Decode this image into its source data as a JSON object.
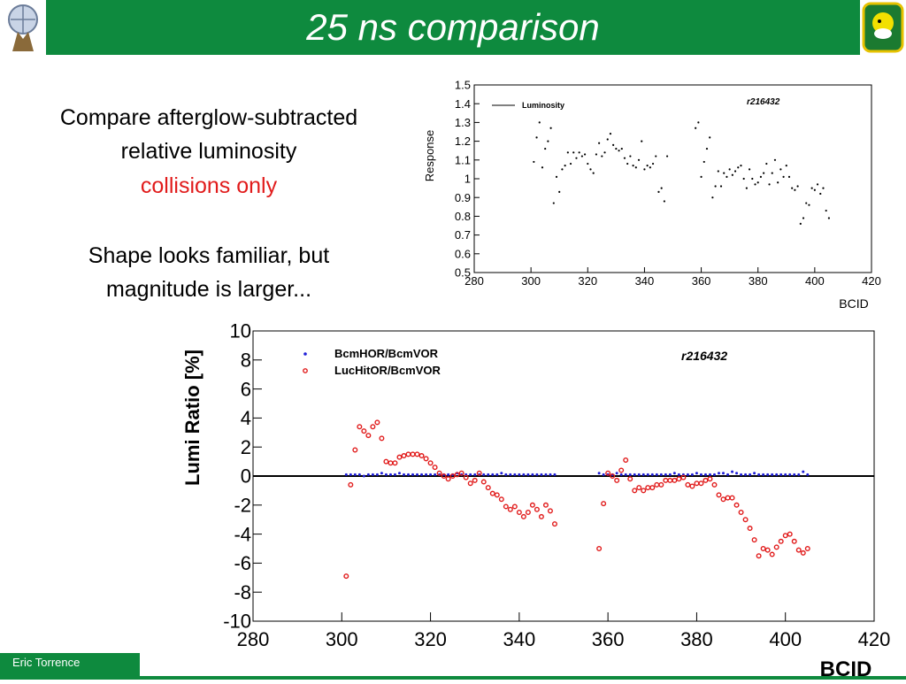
{
  "header": {
    "title": "25 ns comparison"
  },
  "body": {
    "line1": "Compare afterglow-subtracted",
    "line2": "relative luminosity",
    "line3": "collisions only",
    "line4": "Shape looks familiar, but",
    "line5": "magnitude is larger..."
  },
  "footer": {
    "author": "Eric Torrence"
  },
  "colors": {
    "green": "#0e8a3e",
    "red": "#e11b1b",
    "blue": "#1f1fd8"
  },
  "chart_data": [
    {
      "type": "scatter",
      "title": "r216432",
      "xlabel": "BCID",
      "ylabel": "Response",
      "xlim": [
        280,
        420
      ],
      "ylim": [
        0.5,
        1.5
      ],
      "x_ticks": [
        "280",
        "300",
        "320",
        "340",
        "360",
        "380",
        "400",
        "420"
      ],
      "y_ticks": [
        "0.5",
        "0.6",
        "0.7",
        "0.8",
        "0.9",
        "1",
        "1.1",
        "1.2",
        "1.3",
        "1.4",
        "1.5"
      ],
      "legend": "top-left",
      "series": [
        {
          "name": "Luminosity",
          "color": "#000000",
          "x": [
            301,
            302,
            303,
            304,
            305,
            306,
            307,
            308,
            309,
            310,
            311,
            312,
            313,
            314,
            315,
            316,
            317,
            318,
            319,
            320,
            321,
            322,
            323,
            324,
            325,
            326,
            327,
            328,
            329,
            330,
            331,
            332,
            333,
            334,
            335,
            336,
            337,
            338,
            339,
            340,
            341,
            342,
            343,
            344,
            345,
            346,
            347,
            348,
            358,
            359,
            360,
            361,
            362,
            363,
            364,
            365,
            366,
            367,
            368,
            369,
            370,
            371,
            372,
            373,
            374,
            375,
            376,
            377,
            378,
            379,
            380,
            381,
            382,
            383,
            384,
            385,
            386,
            387,
            388,
            389,
            390,
            391,
            392,
            393,
            394,
            395,
            396,
            397,
            398,
            399,
            400,
            401,
            402,
            403,
            404,
            405
          ],
          "y": [
            1.09,
            1.22,
            1.3,
            1.06,
            1.16,
            1.2,
            1.27,
            0.87,
            1.01,
            0.93,
            1.05,
            1.07,
            1.14,
            1.08,
            1.14,
            1.11,
            1.14,
            1.12,
            1.13,
            1.08,
            1.05,
            1.03,
            1.13,
            1.19,
            1.12,
            1.14,
            1.21,
            1.24,
            1.18,
            1.16,
            1.15,
            1.16,
            1.11,
            1.08,
            1.12,
            1.07,
            1.06,
            1.1,
            1.2,
            1.05,
            1.07,
            1.06,
            1.08,
            1.12,
            0.93,
            0.95,
            0.88,
            1.12,
            1.27,
            1.3,
            1.01,
            1.09,
            1.16,
            1.22,
            0.9,
            0.96,
            1.04,
            0.96,
            1.03,
            1.01,
            1.05,
            1.02,
            1.04,
            1.06,
            1.07,
            1.0,
            0.95,
            1.05,
            1.0,
            0.97,
            0.98,
            1.01,
            1.03,
            1.08,
            0.97,
            1.03,
            1.1,
            0.98,
            1.05,
            1.01,
            1.07,
            1.01,
            0.95,
            0.94,
            0.96,
            0.76,
            0.79,
            0.87,
            0.86,
            0.95,
            0.94,
            0.97,
            0.92,
            0.95,
            0.83,
            0.79
          ]
        }
      ]
    },
    {
      "type": "scatter",
      "title": "r216432",
      "xlabel": "BCID",
      "ylabel": "Lumi Ratio [%]",
      "xlim": [
        280,
        420
      ],
      "ylim": [
        -10,
        10
      ],
      "x_ticks": [
        "280",
        "300",
        "320",
        "340",
        "360",
        "380",
        "400",
        "420"
      ],
      "y_ticks": [
        "-10",
        "-8",
        "-6",
        "-4",
        "-2",
        "0",
        "2",
        "4",
        "6",
        "8",
        "10"
      ],
      "legend": "top-left",
      "series": [
        {
          "name": "BcmHOR/BcmVOR",
          "color": "#1f1fd8",
          "x": [
            301,
            302,
            303,
            304,
            305,
            306,
            307,
            308,
            309,
            310,
            311,
            312,
            313,
            314,
            315,
            316,
            317,
            318,
            319,
            320,
            321,
            322,
            323,
            324,
            325,
            326,
            327,
            328,
            329,
            330,
            331,
            332,
            333,
            334,
            335,
            336,
            337,
            338,
            339,
            340,
            341,
            342,
            343,
            344,
            345,
            346,
            347,
            348,
            358,
            359,
            360,
            361,
            362,
            363,
            364,
            365,
            366,
            367,
            368,
            369,
            370,
            371,
            372,
            373,
            374,
            375,
            376,
            377,
            378,
            379,
            380,
            381,
            382,
            383,
            384,
            385,
            386,
            387,
            388,
            389,
            390,
            391,
            392,
            393,
            394,
            395,
            396,
            397,
            398,
            399,
            400,
            401,
            402,
            403,
            404,
            405
          ],
          "y": [
            0.1,
            0.1,
            0.1,
            0.1,
            0.0,
            0.1,
            0.1,
            0.1,
            0.2,
            0.1,
            0.1,
            0.1,
            0.2,
            0.1,
            0.1,
            0.1,
            0.1,
            0.1,
            0.1,
            0.1,
            0.1,
            0.1,
            0.1,
            0.1,
            0.1,
            0.2,
            0.1,
            0.1,
            0.1,
            0.1,
            0.1,
            0.1,
            0.1,
            0.1,
            0.1,
            0.2,
            0.1,
            0.1,
            0.1,
            0.1,
            0.1,
            0.1,
            0.1,
            0.1,
            0.1,
            0.1,
            0.1,
            0.1,
            0.2,
            0.1,
            0.1,
            0.1,
            0.2,
            0.1,
            0.1,
            0.1,
            0.1,
            0.1,
            0.1,
            0.1,
            0.1,
            0.1,
            0.1,
            0.1,
            0.1,
            0.2,
            0.1,
            0.1,
            0.1,
            0.1,
            0.2,
            0.1,
            0.1,
            0.1,
            0.1,
            0.2,
            0.2,
            0.1,
            0.3,
            0.2,
            0.1,
            0.1,
            0.1,
            0.2,
            0.1,
            0.1,
            0.1,
            0.1,
            0.1,
            0.1,
            0.1,
            0.1,
            0.1,
            0.1,
            0.3,
            0.1
          ]
        },
        {
          "name": "LucHitOR/BcmVOR",
          "color": "#e11b1b",
          "x": [
            301,
            302,
            303,
            304,
            305,
            306,
            307,
            308,
            309,
            310,
            311,
            312,
            313,
            314,
            315,
            316,
            317,
            318,
            319,
            320,
            321,
            322,
            323,
            324,
            325,
            326,
            327,
            328,
            329,
            330,
            331,
            332,
            333,
            334,
            335,
            336,
            337,
            338,
            339,
            340,
            341,
            342,
            343,
            344,
            345,
            346,
            347,
            348,
            358,
            359,
            360,
            361,
            362,
            363,
            364,
            365,
            366,
            367,
            368,
            369,
            370,
            371,
            372,
            373,
            374,
            375,
            376,
            377,
            378,
            379,
            380,
            381,
            382,
            383,
            384,
            385,
            386,
            387,
            388,
            389,
            390,
            391,
            392,
            393,
            394,
            395,
            396,
            397,
            398,
            399,
            400,
            401,
            402,
            403,
            404,
            405
          ],
          "y": [
            -6.9,
            -0.6,
            1.8,
            3.4,
            3.1,
            2.8,
            3.4,
            3.7,
            2.6,
            1.0,
            0.9,
            0.9,
            1.3,
            1.4,
            1.5,
            1.5,
            1.5,
            1.4,
            1.2,
            0.9,
            0.6,
            0.2,
            0.0,
            -0.2,
            0.0,
            0.1,
            0.2,
            -0.1,
            -0.5,
            -0.3,
            0.2,
            -0.4,
            -0.8,
            -1.2,
            -1.3,
            -1.6,
            -2.1,
            -2.3,
            -2.1,
            -2.5,
            -2.8,
            -2.5,
            -2.0,
            -2.3,
            -2.8,
            -2.0,
            -2.4,
            -3.3,
            -5.0,
            -1.9,
            0.2,
            0.0,
            -0.3,
            0.4,
            1.1,
            -0.2,
            -1.0,
            -0.8,
            -1.0,
            -0.8,
            -0.8,
            -0.6,
            -0.6,
            -0.3,
            -0.3,
            -0.3,
            -0.2,
            -0.1,
            -0.6,
            -0.7,
            -0.5,
            -0.5,
            -0.3,
            -0.2,
            -0.6,
            -1.3,
            -1.6,
            -1.5,
            -1.5,
            -2.0,
            -2.5,
            -3.0,
            -3.6,
            -4.4,
            -5.5,
            -5.0,
            -5.1,
            -5.4,
            -4.9,
            -4.5,
            -4.1,
            -4.0,
            -4.5,
            -5.1,
            -5.3,
            -5.0
          ]
        }
      ]
    }
  ]
}
